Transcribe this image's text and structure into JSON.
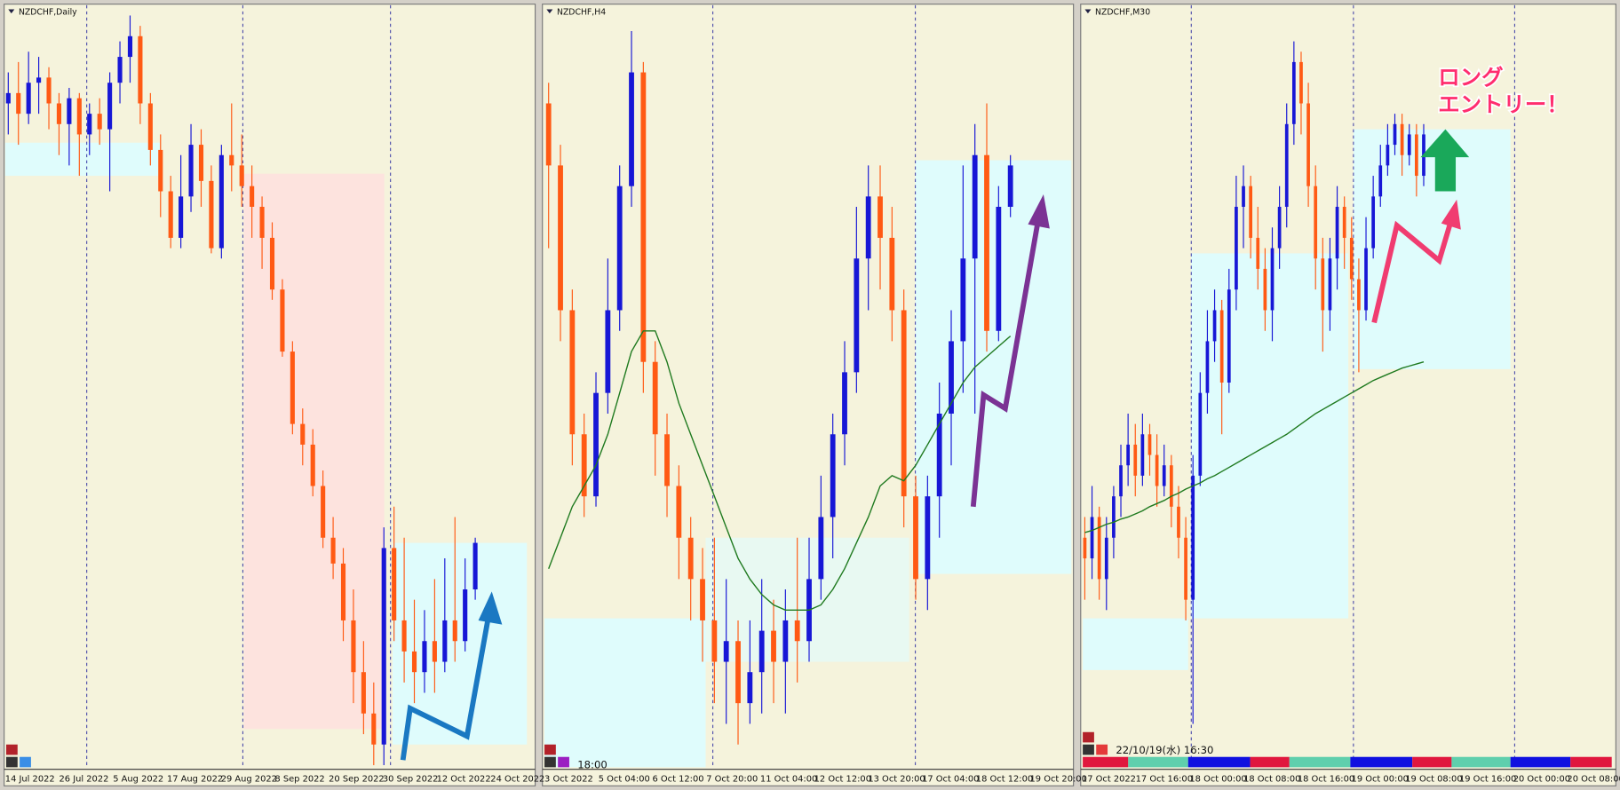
{
  "chart_data": [
    {
      "type": "candlestick",
      "title": "NZDCHF,Daily",
      "xticks": [
        "14 Jul 2022",
        "26 Jul 2022",
        "5 Aug 2022",
        "17 Aug 2022",
        "29 Aug 2022",
        "8 Sep 2022",
        "20 Sep 2022",
        "30 Sep 2022",
        "12 Oct 2022",
        "24 Oct 2022"
      ],
      "ylim": [
        0.5458,
        0.6195
      ],
      "colors": {
        "up": "#1717d6",
        "down": "#ff5a14"
      },
      "ohlc": [
        [
          0.61,
          0.613,
          0.607,
          0.611
        ],
        [
          0.611,
          0.614,
          0.606,
          0.609
        ],
        [
          0.609,
          0.615,
          0.608,
          0.612
        ],
        [
          0.612,
          0.6145,
          0.609,
          0.6125
        ],
        [
          0.6125,
          0.6135,
          0.6075,
          0.61
        ],
        [
          0.61,
          0.611,
          0.605,
          0.608
        ],
        [
          0.608,
          0.6115,
          0.604,
          0.6105
        ],
        [
          0.6105,
          0.611,
          0.603,
          0.607
        ],
        [
          0.607,
          0.61,
          0.605,
          0.609
        ],
        [
          0.609,
          0.6105,
          0.606,
          0.6075
        ],
        [
          0.6075,
          0.613,
          0.6015,
          0.612
        ],
        [
          0.612,
          0.616,
          0.61,
          0.6145
        ],
        [
          0.6145,
          0.6185,
          0.612,
          0.6165
        ],
        [
          0.6165,
          0.6175,
          0.608,
          0.61
        ],
        [
          0.61,
          0.611,
          0.604,
          0.6055
        ],
        [
          0.6055,
          0.607,
          0.599,
          0.6015
        ],
        [
          0.6015,
          0.603,
          0.596,
          0.597
        ],
        [
          0.597,
          0.605,
          0.596,
          0.601
        ],
        [
          0.601,
          0.608,
          0.5995,
          0.606
        ],
        [
          0.606,
          0.6075,
          0.6,
          0.6025
        ],
        [
          0.6025,
          0.604,
          0.5955,
          0.596
        ],
        [
          0.596,
          0.606,
          0.595,
          0.605
        ],
        [
          0.605,
          0.61,
          0.6015,
          0.604
        ],
        [
          0.604,
          0.607,
          0.6,
          0.602
        ],
        [
          0.602,
          0.604,
          0.597,
          0.6
        ],
        [
          0.6,
          0.601,
          0.594,
          0.597
        ],
        [
          0.597,
          0.5985,
          0.591,
          0.592
        ],
        [
          0.592,
          0.593,
          0.5855,
          0.586
        ],
        [
          0.586,
          0.587,
          0.578,
          0.579
        ],
        [
          0.579,
          0.5805,
          0.575,
          0.577
        ],
        [
          0.577,
          0.5785,
          0.572,
          0.573
        ],
        [
          0.573,
          0.5745,
          0.567,
          0.568
        ],
        [
          0.568,
          0.57,
          0.564,
          0.5655
        ],
        [
          0.5655,
          0.567,
          0.558,
          0.56
        ],
        [
          0.56,
          0.563,
          0.552,
          0.555
        ],
        [
          0.555,
          0.558,
          0.549,
          0.551
        ],
        [
          0.551,
          0.554,
          0.546,
          0.548
        ],
        [
          0.548,
          0.569,
          0.546,
          0.567
        ],
        [
          0.567,
          0.571,
          0.558,
          0.56
        ],
        [
          0.56,
          0.568,
          0.554,
          0.557
        ],
        [
          0.557,
          0.562,
          0.552,
          0.555
        ],
        [
          0.555,
          0.561,
          0.553,
          0.558
        ],
        [
          0.558,
          0.564,
          0.553,
          0.556
        ],
        [
          0.556,
          0.566,
          0.555,
          0.56
        ],
        [
          0.56,
          0.57,
          0.556,
          0.558
        ],
        [
          0.558,
          0.566,
          0.557,
          0.563
        ],
        [
          0.563,
          0.568,
          0.562,
          0.5675
        ]
      ]
    },
    {
      "type": "candlestick",
      "title": "NZDCHF,H4",
      "crosshair_time": "18:00",
      "xticks": [
        "3 Oct 2022",
        "5 Oct 04:00",
        "6 Oct 12:00",
        "7 Oct 20:00",
        "11 Oct 04:00",
        "12 Oct 12:00",
        "13 Oct 20:00",
        "17 Oct 04:00",
        "18 Oct 12:00",
        "19 Oct 20:00"
      ],
      "ylim": [
        0.55658,
        0.56395
      ],
      "colors": {
        "up": "#1717d6",
        "down": "#ff5a14",
        "ma": "#1f7a1f"
      },
      "ohlc": [
        [
          0.563,
          0.5632,
          0.5616,
          0.5624
        ],
        [
          0.5624,
          0.5626,
          0.5607,
          0.561
        ],
        [
          0.561,
          0.5612,
          0.5595,
          0.5598
        ],
        [
          0.5598,
          0.56,
          0.559,
          0.5592
        ],
        [
          0.5592,
          0.5604,
          0.5591,
          0.5602
        ],
        [
          0.5602,
          0.5615,
          0.56,
          0.561
        ],
        [
          0.561,
          0.5624,
          0.5608,
          0.5622
        ],
        [
          0.5622,
          0.5637,
          0.562,
          0.5633
        ],
        [
          0.5633,
          0.5634,
          0.5602,
          0.5605
        ],
        [
          0.5605,
          0.5607,
          0.5594,
          0.5598
        ],
        [
          0.5598,
          0.56,
          0.559,
          0.5593
        ],
        [
          0.5593,
          0.5595,
          0.5584,
          0.5588
        ],
        [
          0.5588,
          0.559,
          0.558,
          0.5584
        ],
        [
          0.5584,
          0.5587,
          0.5576,
          0.558
        ],
        [
          0.558,
          0.5588,
          0.5572,
          0.5576
        ],
        [
          0.5576,
          0.5584,
          0.557,
          0.5578
        ],
        [
          0.5578,
          0.558,
          0.5568,
          0.5572
        ],
        [
          0.5572,
          0.558,
          0.557,
          0.5575
        ],
        [
          0.5575,
          0.5584,
          0.5571,
          0.5579
        ],
        [
          0.5579,
          0.5582,
          0.5572,
          0.5576
        ],
        [
          0.5576,
          0.5583,
          0.5571,
          0.558
        ],
        [
          0.558,
          0.5588,
          0.5574,
          0.5578
        ],
        [
          0.5578,
          0.5588,
          0.5576,
          0.5584
        ],
        [
          0.5584,
          0.5594,
          0.5582,
          0.559
        ],
        [
          0.559,
          0.56,
          0.5586,
          0.5598
        ],
        [
          0.5598,
          0.5607,
          0.5595,
          0.5604
        ],
        [
          0.5604,
          0.562,
          0.5602,
          0.5615
        ],
        [
          0.5615,
          0.5624,
          0.561,
          0.5621
        ],
        [
          0.5621,
          0.5624,
          0.5612,
          0.5617
        ],
        [
          0.5617,
          0.562,
          0.5607,
          0.561
        ],
        [
          0.561,
          0.5612,
          0.5589,
          0.5592
        ],
        [
          0.5592,
          0.5594,
          0.5582,
          0.5584
        ],
        [
          0.5584,
          0.5594,
          0.5581,
          0.5592
        ],
        [
          0.5592,
          0.5603,
          0.5588,
          0.56
        ],
        [
          0.56,
          0.561,
          0.5595,
          0.5607
        ],
        [
          0.5607,
          0.5624,
          0.5602,
          0.5615
        ],
        [
          0.5615,
          0.5628,
          0.56,
          0.5625
        ],
        [
          0.5625,
          0.563,
          0.5606,
          0.5608
        ],
        [
          0.5608,
          0.5622,
          0.5607,
          0.562
        ],
        [
          0.562,
          0.5625,
          0.5619,
          0.5624
        ]
      ],
      "ma": [
        0.5585,
        0.5588,
        0.5591,
        0.5593,
        0.5595,
        0.5598,
        0.5602,
        0.5606,
        0.5608,
        0.5608,
        0.5605,
        0.5601,
        0.5598,
        0.5595,
        0.5592,
        0.5589,
        0.5586,
        0.5584,
        0.55825,
        0.55815,
        0.5581,
        0.5581,
        0.5581,
        0.55815,
        0.5583,
        0.5585,
        0.55875,
        0.559,
        0.5593,
        0.5594,
        0.55935,
        0.5595,
        0.5597,
        0.5599,
        0.5601,
        0.5603,
        0.56045,
        0.56055,
        0.56065,
        0.56075
      ]
    },
    {
      "type": "candlestick",
      "title": "NZDCHF,M30",
      "crosshair_time": "22/10/19(水) 16:30",
      "annotation": [
        "ロング",
        "エントリー！"
      ],
      "xticks": [
        "17 Oct 2022",
        "17 Oct 16:00",
        "18 Oct 00:00",
        "18 Oct 08:00",
        "18 Oct 16:00",
        "19 Oct 00:00",
        "19 Oct 08:00",
        "19 Oct 16:00",
        "20 Oct 00:00",
        "20 Oct 08:00"
      ],
      "ylim": [
        0.55258,
        0.55995
      ],
      "colors": {
        "up": "#1717d6",
        "down": "#ff5a14",
        "ma": "#1f7a1f"
      },
      "ohlc": [
        [
          0.5548,
          0.555,
          0.5542,
          0.5546
        ],
        [
          0.5546,
          0.5553,
          0.5544,
          0.555
        ],
        [
          0.555,
          0.5551,
          0.5542,
          0.5544
        ],
        [
          0.5544,
          0.555,
          0.5541,
          0.5548
        ],
        [
          0.5548,
          0.5553,
          0.5546,
          0.5552
        ],
        [
          0.5552,
          0.5557,
          0.555,
          0.5555
        ],
        [
          0.5555,
          0.556,
          0.5553,
          0.5557
        ],
        [
          0.5557,
          0.5559,
          0.5552,
          0.5554
        ],
        [
          0.5554,
          0.556,
          0.5553,
          0.5558
        ],
        [
          0.5558,
          0.5559,
          0.5554,
          0.5556
        ],
        [
          0.5556,
          0.5558,
          0.5551,
          0.5553
        ],
        [
          0.5553,
          0.5557,
          0.5552,
          0.5555
        ],
        [
          0.5555,
          0.5556,
          0.5549,
          0.5551
        ],
        [
          0.5551,
          0.5553,
          0.5546,
          0.5548
        ],
        [
          0.5548,
          0.555,
          0.554,
          0.5542
        ],
        [
          0.5542,
          0.5556,
          0.553,
          0.5554
        ],
        [
          0.5554,
          0.5564,
          0.5553,
          0.5562
        ],
        [
          0.5562,
          0.557,
          0.556,
          0.5567
        ],
        [
          0.5567,
          0.5572,
          0.5565,
          0.557
        ],
        [
          0.557,
          0.5571,
          0.5558,
          0.5563
        ],
        [
          0.5563,
          0.5574,
          0.5562,
          0.5572
        ],
        [
          0.5572,
          0.5583,
          0.557,
          0.558
        ],
        [
          0.558,
          0.5584,
          0.5576,
          0.5582
        ],
        [
          0.5582,
          0.5583,
          0.5575,
          0.5577
        ],
        [
          0.5577,
          0.558,
          0.5572,
          0.5574
        ],
        [
          0.5574,
          0.5576,
          0.5568,
          0.557
        ],
        [
          0.557,
          0.5578,
          0.5567,
          0.5576
        ],
        [
          0.5576,
          0.5582,
          0.5574,
          0.558
        ],
        [
          0.558,
          0.559,
          0.5578,
          0.5588
        ],
        [
          0.5588,
          0.5596,
          0.5586,
          0.5594
        ],
        [
          0.5594,
          0.5595,
          0.5587,
          0.559
        ],
        [
          0.559,
          0.5592,
          0.558,
          0.5582
        ],
        [
          0.5582,
          0.5584,
          0.5572,
          0.5575
        ],
        [
          0.5575,
          0.5577,
          0.5566,
          0.557
        ],
        [
          0.557,
          0.5577,
          0.5568,
          0.5575
        ],
        [
          0.5575,
          0.5582,
          0.5572,
          0.558
        ],
        [
          0.558,
          0.5581,
          0.5574,
          0.5577
        ],
        [
          0.5577,
          0.5579,
          0.5571,
          0.5573
        ],
        [
          0.5573,
          0.5575,
          0.5564,
          0.557
        ],
        [
          0.557,
          0.5579,
          0.5569,
          0.5576
        ],
        [
          0.5576,
          0.5583,
          0.5575,
          0.5581
        ],
        [
          0.5581,
          0.5586,
          0.558,
          0.5584
        ],
        [
          0.5584,
          0.5588,
          0.5583,
          0.5586
        ],
        [
          0.5586,
          0.5589,
          0.5585,
          0.5588
        ],
        [
          0.5588,
          0.5589,
          0.5583,
          0.5585
        ],
        [
          0.5585,
          0.5588,
          0.5584,
          0.5587
        ],
        [
          0.5587,
          0.5588,
          0.5581,
          0.5583
        ],
        [
          0.5583,
          0.5588,
          0.5582,
          0.5587
        ]
      ],
      "ma": [
        0.55485,
        0.55487,
        0.5549,
        0.55493,
        0.55495,
        0.55498,
        0.555,
        0.55503,
        0.55506,
        0.5551,
        0.55513,
        0.55516,
        0.5552,
        0.55523,
        0.55527,
        0.5553,
        0.55533,
        0.55537,
        0.5554,
        0.55544,
        0.55548,
        0.55552,
        0.55556,
        0.5556,
        0.55564,
        0.55568,
        0.55572,
        0.55576,
        0.5558,
        0.55585,
        0.5559,
        0.55595,
        0.556,
        0.55604,
        0.55608,
        0.55612,
        0.55616,
        0.5562,
        0.55624,
        0.55628,
        0.55632,
        0.55635,
        0.55638,
        0.55641,
        0.55644,
        0.55646,
        0.55648,
        0.5565
      ]
    }
  ]
}
